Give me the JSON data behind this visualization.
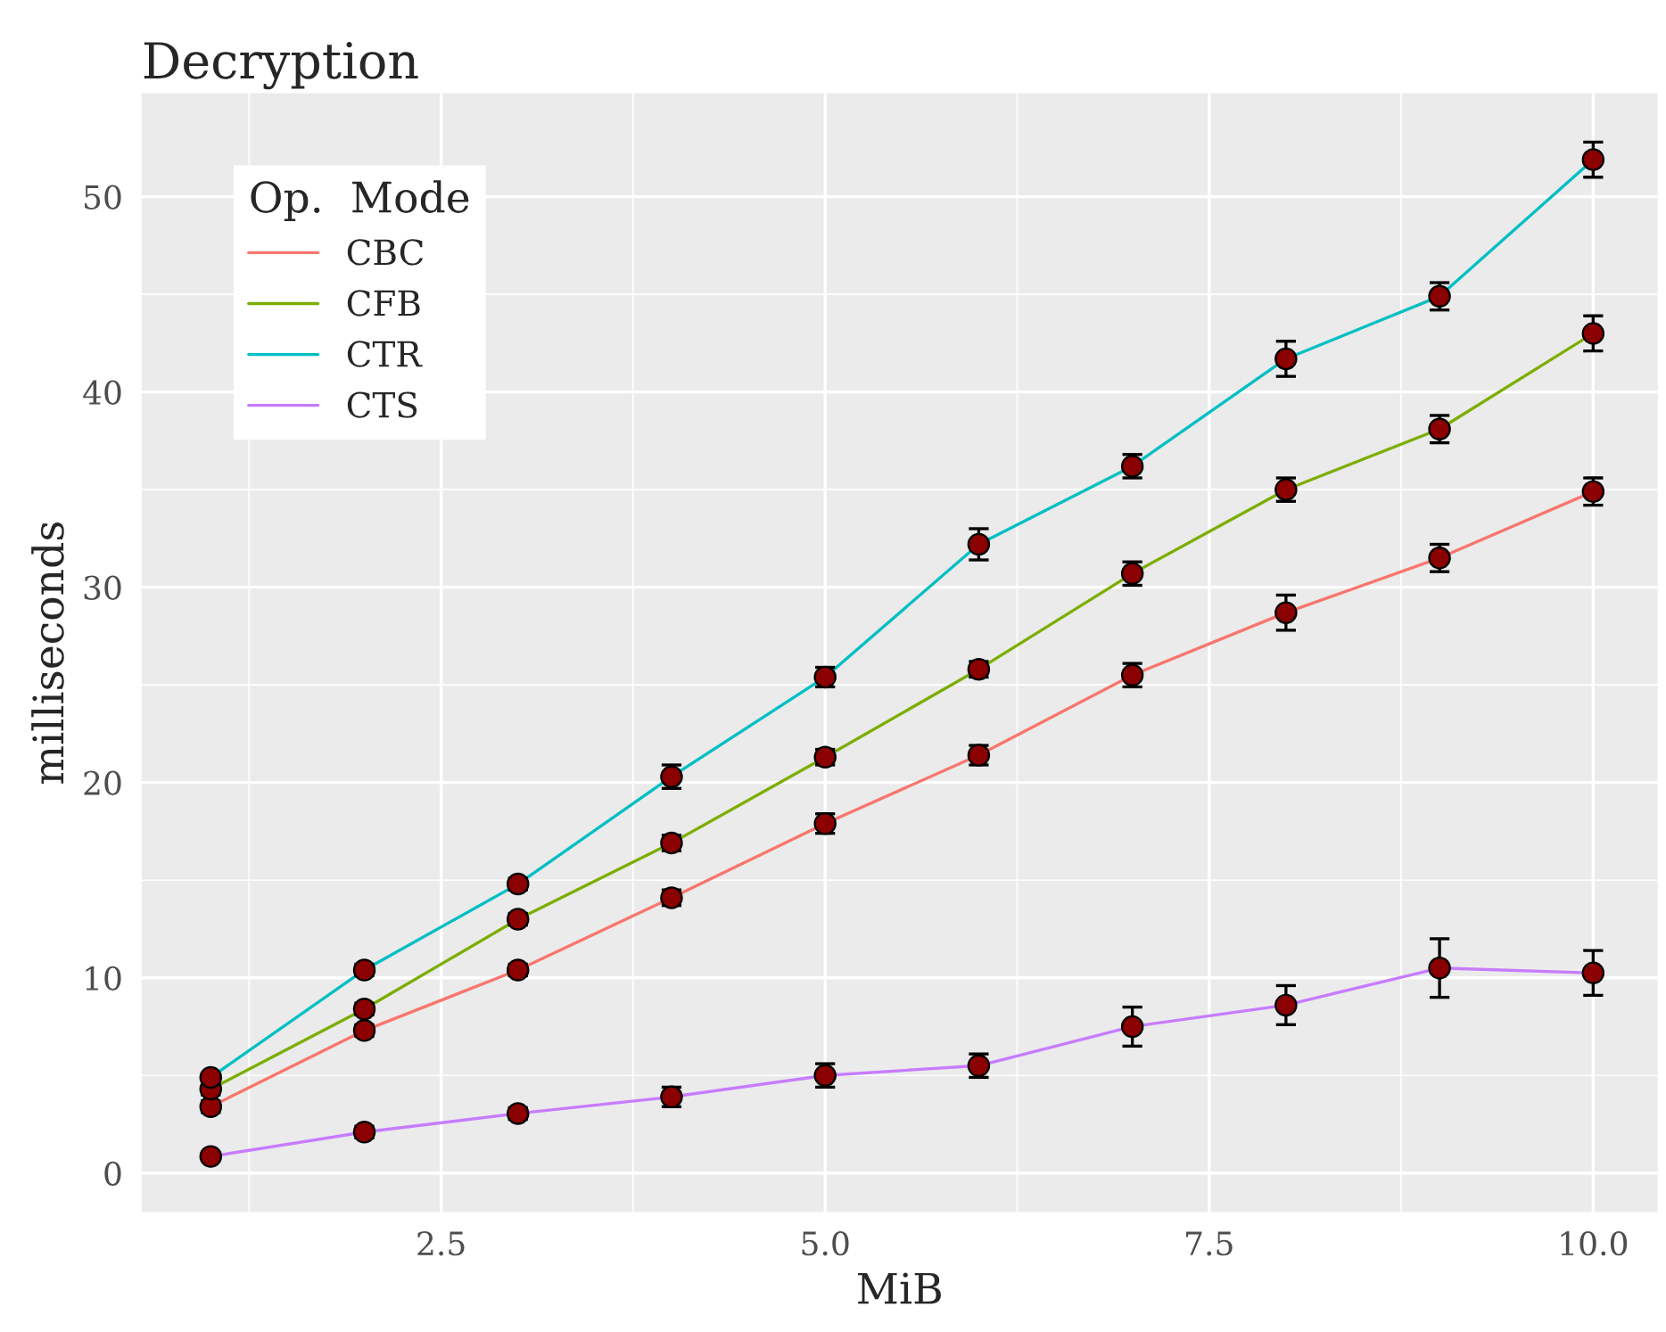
{
  "chart_data": {
    "type": "line",
    "title": "Decryption",
    "xlabel": "MiB",
    "ylabel": "milliseconds",
    "legend_title": "Op.  Mode",
    "x": [
      1,
      2,
      3,
      4,
      5,
      6,
      7,
      8,
      9,
      10
    ],
    "series": [
      {
        "name": "CBC",
        "color": "#f8766d",
        "values": [
          3.4,
          7.3,
          10.4,
          14.1,
          17.9,
          21.4,
          25.5,
          28.7,
          31.5,
          34.9
        ],
        "errors": [
          0.3,
          0.3,
          0.3,
          0.4,
          0.5,
          0.5,
          0.6,
          0.9,
          0.7,
          0.7
        ]
      },
      {
        "name": "CFB",
        "color": "#7cae00",
        "values": [
          4.3,
          8.4,
          13.0,
          16.9,
          21.3,
          25.8,
          30.7,
          35.0,
          38.1,
          43.0
        ],
        "errors": [
          0.3,
          0.3,
          0.3,
          0.4,
          0.4,
          0.4,
          0.6,
          0.6,
          0.7,
          0.9
        ]
      },
      {
        "name": "CTR",
        "color": "#00bfc4",
        "values": [
          4.9,
          10.4,
          14.8,
          20.3,
          25.4,
          32.2,
          36.2,
          41.7,
          44.9,
          51.9
        ],
        "errors": [
          0.2,
          0.3,
          0.3,
          0.6,
          0.5,
          0.8,
          0.6,
          0.9,
          0.7,
          0.9
        ]
      },
      {
        "name": "CTS",
        "color": "#c77cff",
        "values": [
          0.85,
          2.1,
          3.05,
          3.9,
          5.0,
          5.5,
          7.5,
          8.6,
          10.5,
          10.25
        ],
        "errors": [
          0.2,
          0.3,
          0.3,
          0.5,
          0.6,
          0.6,
          1.0,
          1.0,
          1.5,
          1.15
        ]
      }
    ],
    "xlim": [
      0.55,
      10.42
    ],
    "ylim": [
      -2,
      55.3
    ],
    "xticks": [
      {
        "value": 2.5,
        "label": "2.5"
      },
      {
        "value": 5.0,
        "label": "5.0"
      },
      {
        "value": 7.5,
        "label": "7.5"
      },
      {
        "value": 10.0,
        "label": "10.0"
      }
    ],
    "yticks": [
      0,
      10,
      20,
      30,
      40,
      50
    ],
    "grid": true,
    "legend": "top left",
    "marker": "circle",
    "line_style": "solid"
  }
}
